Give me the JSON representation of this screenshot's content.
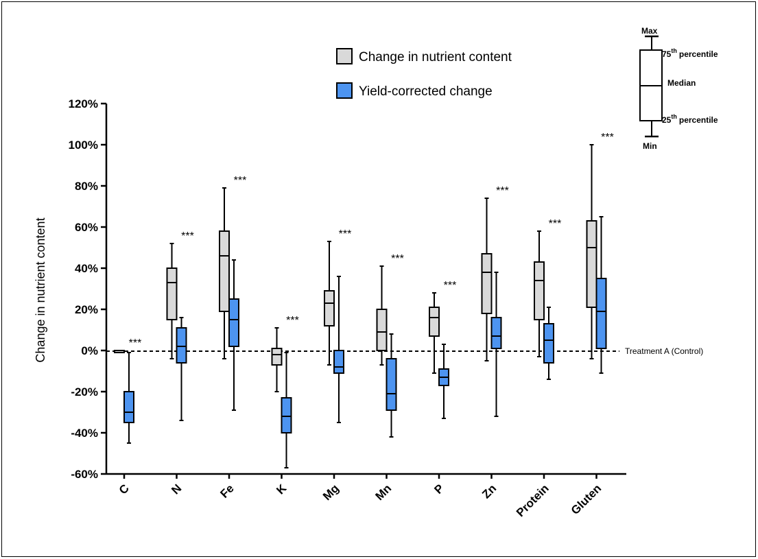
{
  "chart_data": {
    "type": "box",
    "ylabel": "Change in nutrient content",
    "y_unit": "%",
    "ylim": [
      -60,
      120
    ],
    "y_ticks": [
      "-60%",
      "-40%",
      "-20%",
      "0%",
      "20%",
      "40%",
      "60%",
      "80%",
      "100%",
      "120%"
    ],
    "y_tick_values": [
      -60,
      -40,
      -20,
      0,
      20,
      40,
      60,
      80,
      100,
      120
    ],
    "categories": [
      "C",
      "N",
      "Fe",
      "K",
      "Mg",
      "Mn",
      "P",
      "Zn",
      "Protein",
      "Gluten"
    ],
    "significance": [
      "***",
      "***",
      "***",
      "***",
      "***",
      "***",
      "***",
      "***",
      "***",
      "***"
    ],
    "series": [
      {
        "name": "Change in nutrient content",
        "color": "#d9d9d9",
        "boxes": [
          {
            "min": -1,
            "q1": -1,
            "median": 0,
            "q3": 0,
            "max": 0
          },
          {
            "min": -4,
            "q1": 15,
            "median": 33,
            "q3": 40,
            "max": 52
          },
          {
            "min": -4,
            "q1": 19,
            "median": 46,
            "q3": 58,
            "max": 79
          },
          {
            "min": -20,
            "q1": -7,
            "median": -2,
            "q3": 1,
            "max": 11
          },
          {
            "min": -7,
            "q1": 12,
            "median": 23,
            "q3": 29,
            "max": 53
          },
          {
            "min": -7,
            "q1": 0,
            "median": 9,
            "q3": 20,
            "max": 41
          },
          {
            "min": -11,
            "q1": 7,
            "median": 16,
            "q3": 21,
            "max": 28
          },
          {
            "min": -5,
            "q1": 18,
            "median": 38,
            "q3": 47,
            "max": 74
          },
          {
            "min": -3,
            "q1": 15,
            "median": 34,
            "q3": 43,
            "max": 58
          },
          {
            "min": -4,
            "q1": 21,
            "median": 50,
            "q3": 63,
            "max": 100
          }
        ]
      },
      {
        "name": "Yield-corrected change",
        "color": "#4d94f0",
        "boxes": [
          {
            "min": -45,
            "q1": -35,
            "median": -30,
            "q3": -20,
            "max": -1
          },
          {
            "min": -34,
            "q1": -6,
            "median": 2,
            "q3": 11,
            "max": 16
          },
          {
            "min": -29,
            "q1": 2,
            "median": 15,
            "q3": 25,
            "max": 44
          },
          {
            "min": -57,
            "q1": -40,
            "median": -32,
            "q3": -23,
            "max": -1
          },
          {
            "min": -35,
            "q1": -11,
            "median": -8,
            "q3": 0,
            "max": 36
          },
          {
            "min": -42,
            "q1": -29,
            "median": -21,
            "q3": -4,
            "max": 8
          },
          {
            "min": -33,
            "q1": -17,
            "median": -13,
            "q3": -9,
            "max": 3
          },
          {
            "min": -32,
            "q1": 1,
            "median": 7,
            "q3": 16,
            "max": 38
          },
          {
            "min": -14,
            "q1": -6,
            "median": 5,
            "q3": 13,
            "max": 21
          },
          {
            "min": -11,
            "q1": 1,
            "median": 19,
            "q3": 35,
            "max": 65
          }
        ]
      }
    ],
    "reference_line": {
      "value": 0,
      "label": "Treatment A (Control)",
      "style": "dashed"
    },
    "legend": {
      "position": "top-center",
      "entries": [
        "Change in nutrient content",
        "Yield-corrected change"
      ]
    },
    "box_key": {
      "max": "Max",
      "q3_prefix": "75",
      "q3_suffix": "percentile",
      "median": "Median",
      "q1_prefix": "25",
      "q1_suffix": "percentile",
      "ordinal_suffix": "th",
      "min": "Min"
    },
    "grid": false
  }
}
